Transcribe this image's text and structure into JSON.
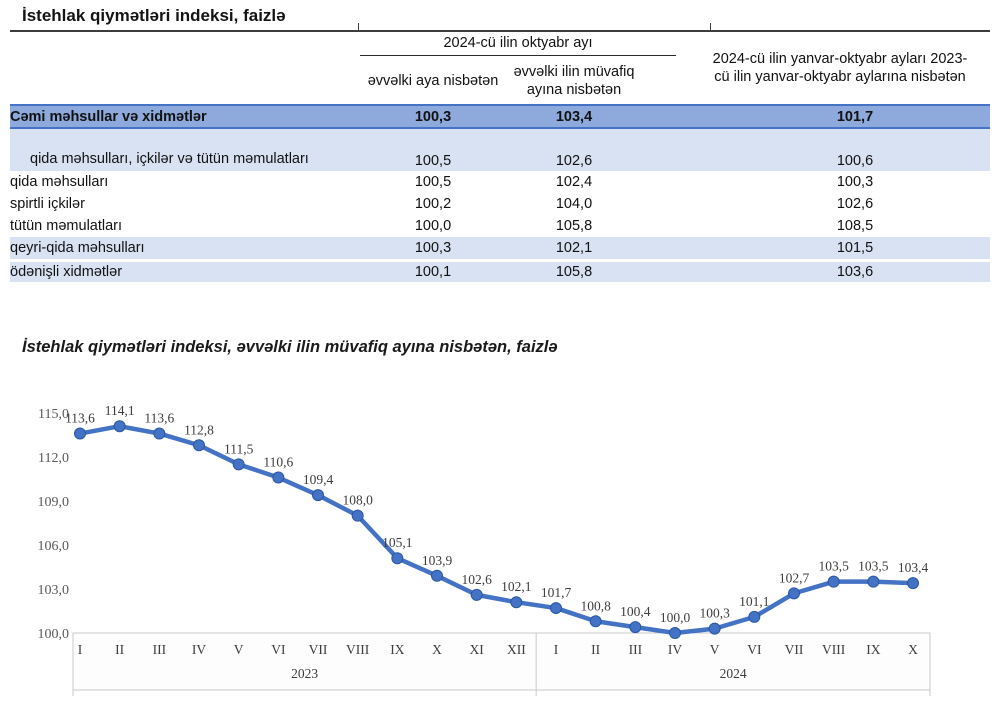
{
  "title": "İstehlak qiymətləri indeksi, faizlə",
  "table": {
    "group_header": "2024-cü ilin oktyabr ayı",
    "sub_headers": {
      "prev_month": "əvvəlki aya nisbətən",
      "same_month_prev_year": "əvvəlki ilin müvafiq ayına nisbətən"
    },
    "ytd_header": "2024-cü ilin yanvar-oktyabr ayları 2023-cü ilin yanvar-oktyabr aylarına nisbətən",
    "rows": [
      {
        "label": "Cəmi məhsullar və xidmətlər",
        "to_prev_month": "100,3",
        "to_same_month_prev_year": "103,4",
        "ytd": "101,7"
      },
      {
        "label": "qida məhsulları, içkilər və tütün məmulatları",
        "to_prev_month": "100,5",
        "to_same_month_prev_year": "102,6",
        "ytd": "100,6"
      },
      {
        "label": "qida məhsulları",
        "to_prev_month": "100,5",
        "to_same_month_prev_year": "102,4",
        "ytd": "100,3"
      },
      {
        "label": "spirtli içkilər",
        "to_prev_month": "100,2",
        "to_same_month_prev_year": "104,0",
        "ytd": "102,6"
      },
      {
        "label": "tütün məmulatları",
        "to_prev_month": "100,0",
        "to_same_month_prev_year": "105,8",
        "ytd": "108,5"
      },
      {
        "label": "qeyri-qida məhsulları",
        "to_prev_month": "100,3",
        "to_same_month_prev_year": "102,1",
        "ytd": "101,5"
      },
      {
        "label": "ödənişli xidmətlər",
        "to_prev_month": "100,1",
        "to_same_month_prev_year": "105,8",
        "ytd": "103,6"
      }
    ]
  },
  "chart_title": "İstehlak qiymətləri indeksi, əvvəlki ilin müvafiq ayına nisbətən, faizlə",
  "chart_data": {
    "type": "line",
    "title": "İstehlak qiymətləri indeksi, əvvəlki ilin müvafiq ayına nisbətən, faizlə",
    "x_groups": [
      {
        "year": "2023",
        "months": [
          "I",
          "II",
          "III",
          "IV",
          "V",
          "VI",
          "VII",
          "VIII",
          "IX",
          "X",
          "XI",
          "XII"
        ]
      },
      {
        "year": "2024",
        "months": [
          "I",
          "II",
          "III",
          "IV",
          "V",
          "VI",
          "VII",
          "VIII",
          "IX",
          "X"
        ]
      }
    ],
    "values": [
      113.6,
      114.1,
      113.6,
      112.8,
      111.5,
      110.6,
      109.4,
      108.0,
      105.1,
      103.9,
      102.6,
      102.1,
      101.7,
      100.8,
      100.4,
      100.0,
      100.3,
      101.1,
      102.7,
      103.5,
      103.5,
      103.4
    ],
    "y_ticks": [
      100.0,
      103.0,
      106.0,
      109.0,
      112.0,
      115.0
    ],
    "ylim": [
      100.0,
      115.0
    ],
    "decimal_comma": true,
    "grid": false,
    "legend": "none",
    "line_color": "#4472C4",
    "marker_edge_color": "#2A56A5",
    "label_color": "#3d3d3d",
    "axis_color": "#595959",
    "box_color": "#c9c9c9"
  }
}
